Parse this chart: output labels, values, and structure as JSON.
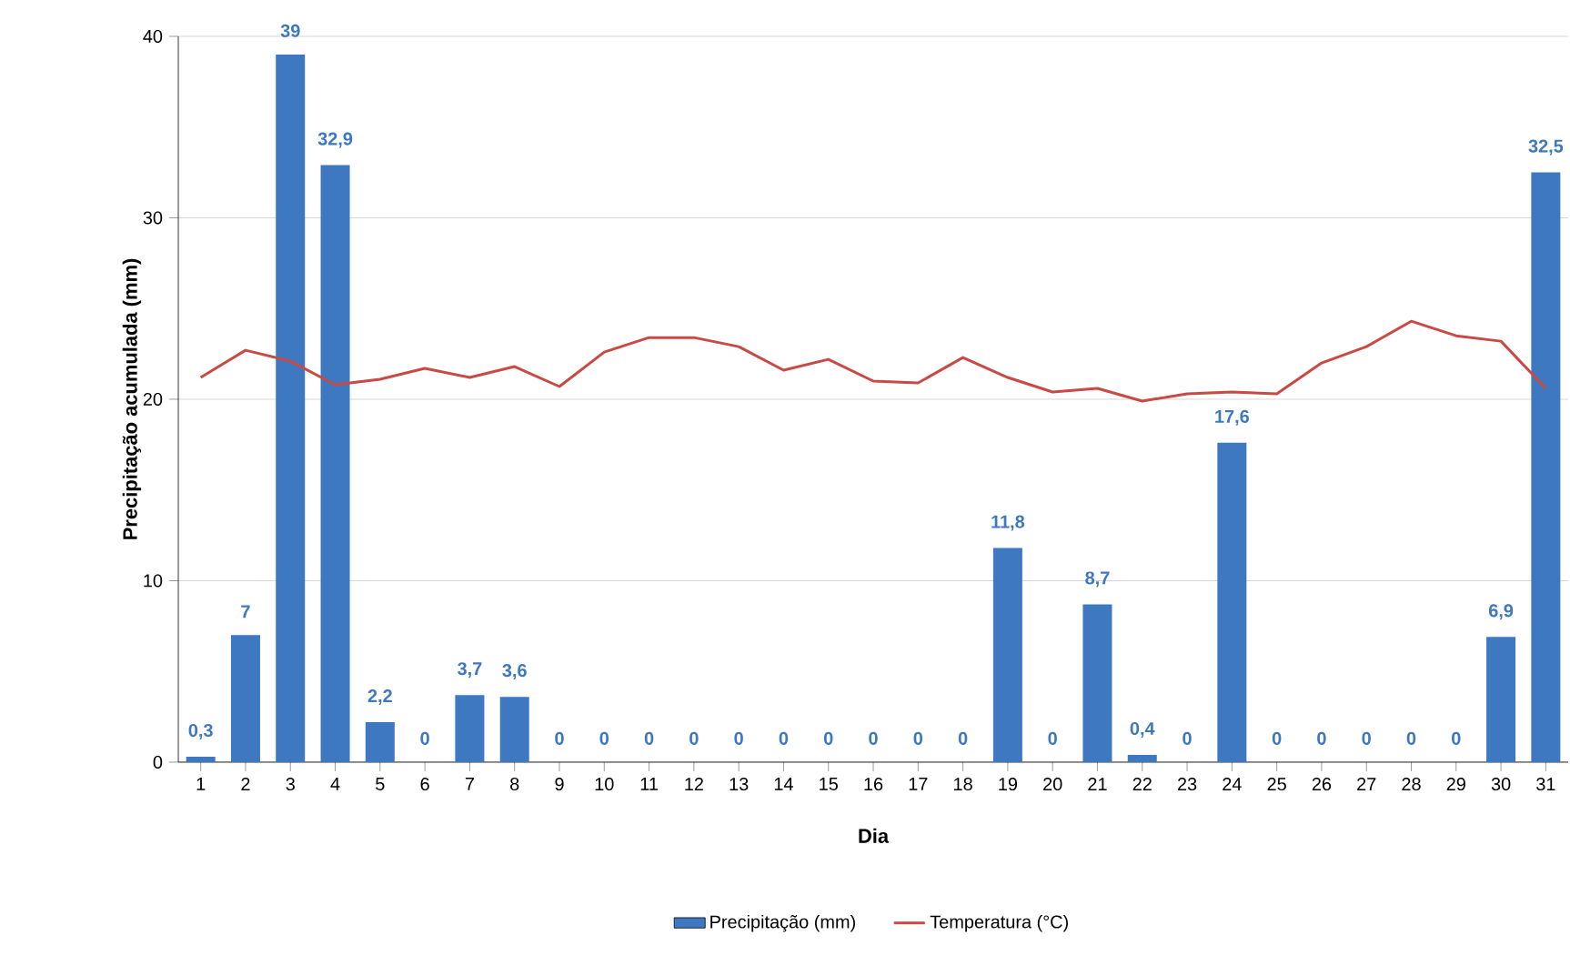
{
  "chart_data": {
    "type": "bar",
    "xlabel": "Dia",
    "ylabel": "Precipitação acumulada (mm)",
    "categories": [
      "1",
      "2",
      "3",
      "4",
      "5",
      "6",
      "7",
      "8",
      "9",
      "10",
      "11",
      "12",
      "13",
      "14",
      "15",
      "16",
      "17",
      "18",
      "19",
      "20",
      "21",
      "22",
      "23",
      "24",
      "25",
      "26",
      "27",
      "28",
      "29",
      "30",
      "31"
    ],
    "series": [
      {
        "name": "Precipitação (mm)",
        "color": "#3d78c0",
        "values": [
          0.3,
          7,
          39,
          32.9,
          2.2,
          0,
          3.7,
          3.6,
          0,
          0,
          0,
          0,
          0,
          0,
          0,
          0,
          0,
          0,
          11.8,
          0,
          8.7,
          0.4,
          0,
          17.6,
          0,
          0,
          0,
          0,
          0,
          6.9,
          32.5
        ],
        "value_labels": [
          "0,3",
          "7",
          "39",
          "32,9",
          "2,2",
          "0",
          "3,7",
          "3,6",
          "0",
          "0",
          "0",
          "0",
          "0",
          "0",
          "0",
          "0",
          "0",
          "0",
          "11,8",
          "0",
          "8,7",
          "0,4",
          "0",
          "17,6",
          "0",
          "0",
          "0",
          "0",
          "0",
          "6,9",
          "32,5"
        ]
      },
      {
        "name": "Temperatura (°C)",
        "type": "line",
        "color": "#c94a45",
        "values": [
          21.2,
          22.7,
          22.1,
          20.8,
          21.1,
          21.7,
          21.2,
          21.8,
          20.7,
          22.6,
          23.4,
          23.4,
          22.9,
          21.6,
          22.2,
          21.0,
          20.9,
          22.3,
          21.2,
          20.4,
          20.6,
          19.9,
          20.3,
          20.4,
          20.3,
          22.0,
          22.9,
          24.3,
          23.5,
          23.2,
          20.6
        ]
      }
    ],
    "ylim": [
      0,
      40
    ],
    "yticks": [
      0,
      10,
      20,
      30,
      40
    ],
    "grid": "y",
    "legend": "bottom",
    "marker": "none",
    "line_style": "solid"
  }
}
